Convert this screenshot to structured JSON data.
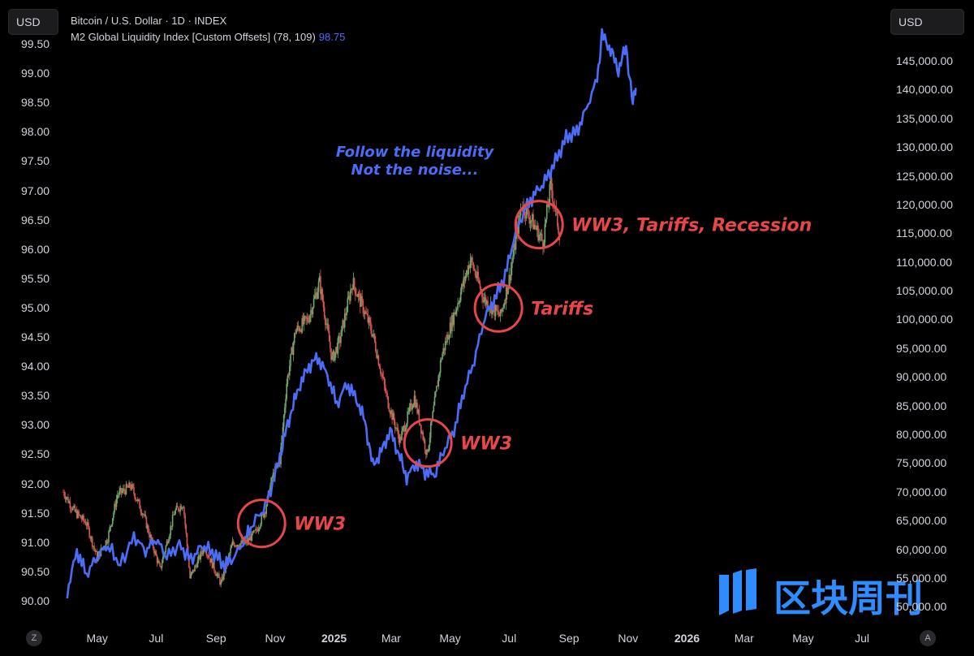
{
  "header": {
    "unit_left": "USD",
    "unit_right": "USD",
    "legend_bitcoin": "Bitcoin / U.S. Dollar · 1D · INDEX",
    "legend_m2": "M2 Global Liquidity Index [Custom Offsets] (78, 109)",
    "legend_m2_value": "98.75"
  },
  "controls": {
    "left_button": "Z",
    "right_button": "A"
  },
  "colors": {
    "m2_line": "#4a6cf7",
    "candle_up": "#6fa86b",
    "candle_down": "#d9534f",
    "annotation": "#e8474a",
    "background": "#000000"
  },
  "watermark": {
    "text": "区块周刊",
    "logo": "bars-logo-icon"
  },
  "chart_data": {
    "type": "line",
    "xlabel": "",
    "left_axis": {
      "series": "M2 Global Liquidity Index",
      "ticks": [
        "99.50",
        "99.00",
        "98.50",
        "98.00",
        "97.50",
        "97.00",
        "96.50",
        "96.00",
        "95.50",
        "95.00",
        "94.50",
        "94.00",
        "93.50",
        "93.00",
        "92.50",
        "92.00",
        "91.50",
        "91.00",
        "90.50",
        "90.00"
      ],
      "range": [
        89.75,
        99.75
      ]
    },
    "right_axis": {
      "series": "Bitcoin / U.S. Dollar",
      "ticks": [
        "145,000.00",
        "140,000.00",
        "135,000.00",
        "130,000.00",
        "125,000.00",
        "120,000.00",
        "115,000.00",
        "110,000.00",
        "105,000.00",
        "100,000.00",
        "95,000.00",
        "90,000.00",
        "85,000.00",
        "80,000.00",
        "75,000.00",
        "70,000.00",
        "65,000.00",
        "60,000.00",
        "55,000.00",
        "50,000.00"
      ],
      "range": [
        48500,
        150500
      ]
    },
    "x_ticks": [
      {
        "label": "May",
        "date": "2024-05-01",
        "bold": false
      },
      {
        "label": "Jul",
        "date": "2024-07-01",
        "bold": false
      },
      {
        "label": "Sep",
        "date": "2024-09-01",
        "bold": false
      },
      {
        "label": "Nov",
        "date": "2024-11-01",
        "bold": false
      },
      {
        "label": "2025",
        "date": "2025-01-01",
        "bold": true
      },
      {
        "label": "Mar",
        "date": "2025-03-01",
        "bold": false
      },
      {
        "label": "May",
        "date": "2025-05-01",
        "bold": false
      },
      {
        "label": "Jul",
        "date": "2025-07-01",
        "bold": false
      },
      {
        "label": "Sep",
        "date": "2025-09-01",
        "bold": false
      },
      {
        "label": "Nov",
        "date": "2025-11-01",
        "bold": false
      },
      {
        "label": "2026",
        "date": "2026-01-01",
        "bold": true
      },
      {
        "label": "Mar",
        "date": "2026-03-01",
        "bold": false
      },
      {
        "label": "May",
        "date": "2026-05-01",
        "bold": false
      },
      {
        "label": "Jul",
        "date": "2026-07-01",
        "bold": false
      }
    ],
    "x_range": [
      "2024-03-27",
      "2026-08-06"
    ],
    "series": [
      {
        "name": "M2 Global Liquidity Index [Custom Offsets] (78, 109)",
        "axis": "left",
        "type": "line",
        "points": [
          [
            "2024-03-31",
            90.15
          ],
          [
            "2024-04-10",
            90.85
          ],
          [
            "2024-04-20",
            90.45
          ],
          [
            "2024-05-01",
            90.75
          ],
          [
            "2024-05-12",
            90.95
          ],
          [
            "2024-05-25",
            90.6
          ],
          [
            "2024-06-08",
            91.1
          ],
          [
            "2024-06-20",
            90.85
          ],
          [
            "2024-07-01",
            91.05
          ],
          [
            "2024-07-12",
            90.75
          ],
          [
            "2024-07-25",
            90.95
          ],
          [
            "2024-08-06",
            90.7
          ],
          [
            "2024-08-18",
            90.95
          ],
          [
            "2024-08-30",
            90.8
          ],
          [
            "2024-09-10",
            90.6
          ],
          [
            "2024-09-20",
            90.75
          ],
          [
            "2024-10-01",
            91.05
          ],
          [
            "2024-10-10",
            91.35
          ],
          [
            "2024-10-22",
            91.6
          ],
          [
            "2024-11-02",
            92.2
          ],
          [
            "2024-11-10",
            92.75
          ],
          [
            "2024-11-18",
            93.25
          ],
          [
            "2024-11-27",
            93.7
          ],
          [
            "2024-12-06",
            94.0
          ],
          [
            "2024-12-15",
            94.15
          ],
          [
            "2024-12-25",
            93.85
          ],
          [
            "2025-01-04",
            93.35
          ],
          [
            "2025-01-14",
            93.7
          ],
          [
            "2025-01-24",
            93.45
          ],
          [
            "2025-02-02",
            93.05
          ],
          [
            "2025-02-10",
            92.3
          ],
          [
            "2025-02-19",
            92.55
          ],
          [
            "2025-02-28",
            92.9
          ],
          [
            "2025-03-09",
            92.5
          ],
          [
            "2025-03-17",
            92.1
          ],
          [
            "2025-03-27",
            92.35
          ],
          [
            "2025-04-05",
            92.2
          ],
          [
            "2025-04-15",
            92.15
          ],
          [
            "2025-04-24",
            92.55
          ],
          [
            "2025-05-05",
            92.9
          ],
          [
            "2025-05-15",
            93.55
          ],
          [
            "2025-05-26",
            94.1
          ],
          [
            "2025-06-06",
            94.85
          ],
          [
            "2025-06-16",
            95.15
          ],
          [
            "2025-06-27",
            95.55
          ],
          [
            "2025-07-07",
            96.25
          ],
          [
            "2025-07-18",
            96.7
          ],
          [
            "2025-07-28",
            96.95
          ],
          [
            "2025-08-07",
            97.15
          ],
          [
            "2025-08-18",
            97.5
          ],
          [
            "2025-08-29",
            97.9
          ],
          [
            "2025-09-09",
            98.0
          ],
          [
            "2025-09-19",
            98.4
          ],
          [
            "2025-09-30",
            98.9
          ],
          [
            "2025-10-05",
            99.65
          ],
          [
            "2025-10-14",
            99.4
          ],
          [
            "2025-10-22",
            99.05
          ],
          [
            "2025-10-30",
            99.45
          ],
          [
            "2025-11-06",
            98.45
          ],
          [
            "2025-11-09",
            98.75
          ]
        ]
      },
      {
        "name": "Bitcoin / U.S. Dollar",
        "axis": "right",
        "type": "candlestick",
        "close_points": [
          [
            "2024-03-27",
            70000
          ],
          [
            "2024-04-08",
            66500
          ],
          [
            "2024-04-20",
            64500
          ],
          [
            "2024-05-01",
            58500
          ],
          [
            "2024-05-12",
            62000
          ],
          [
            "2024-05-22",
            69500
          ],
          [
            "2024-06-05",
            71000
          ],
          [
            "2024-06-18",
            66000
          ],
          [
            "2024-07-05",
            56500
          ],
          [
            "2024-07-20",
            66500
          ],
          [
            "2024-07-29",
            68000
          ],
          [
            "2024-08-05",
            55000
          ],
          [
            "2024-08-20",
            60500
          ],
          [
            "2024-09-06",
            54000
          ],
          [
            "2024-09-18",
            61000
          ],
          [
            "2024-10-01",
            61000
          ],
          [
            "2024-10-12",
            63000
          ],
          [
            "2024-10-22",
            67000
          ],
          [
            "2024-10-29",
            72500
          ],
          [
            "2024-11-06",
            75500
          ],
          [
            "2024-11-13",
            89000
          ],
          [
            "2024-11-22",
            98000
          ],
          [
            "2024-12-05",
            100000
          ],
          [
            "2024-12-17",
            106500
          ],
          [
            "2024-12-30",
            93000
          ],
          [
            "2025-01-07",
            96500
          ],
          [
            "2025-01-20",
            106500
          ],
          [
            "2025-01-31",
            102000
          ],
          [
            "2025-02-10",
            97500
          ],
          [
            "2025-02-25",
            86000
          ],
          [
            "2025-03-10",
            79000
          ],
          [
            "2025-03-25",
            86500
          ],
          [
            "2025-04-07",
            76500
          ],
          [
            "2025-04-22",
            93500
          ],
          [
            "2025-05-08",
            102500
          ],
          [
            "2025-05-22",
            110500
          ],
          [
            "2025-06-05",
            103500
          ],
          [
            "2025-06-22",
            100500
          ],
          [
            "2025-07-01",
            107000
          ],
          [
            "2025-07-14",
            120000
          ],
          [
            "2025-07-25",
            117000
          ],
          [
            "2025-08-05",
            113500
          ],
          [
            "2025-08-13",
            123500
          ],
          [
            "2025-08-22",
            115000
          ]
        ]
      }
    ],
    "annotations": [
      {
        "text": "WW3",
        "date": "2024-10-18",
        "btc": 64500
      },
      {
        "text": "WW3",
        "date": "2025-04-08",
        "btc": 78500
      },
      {
        "text": "Tariffs",
        "date": "2025-06-20",
        "btc": 102000
      },
      {
        "text": "WW3, Tariffs, Recession",
        "date": "2025-08-01",
        "btc": 116500
      }
    ],
    "callout": [
      "Follow the liquidity",
      "Not the noise..."
    ]
  }
}
